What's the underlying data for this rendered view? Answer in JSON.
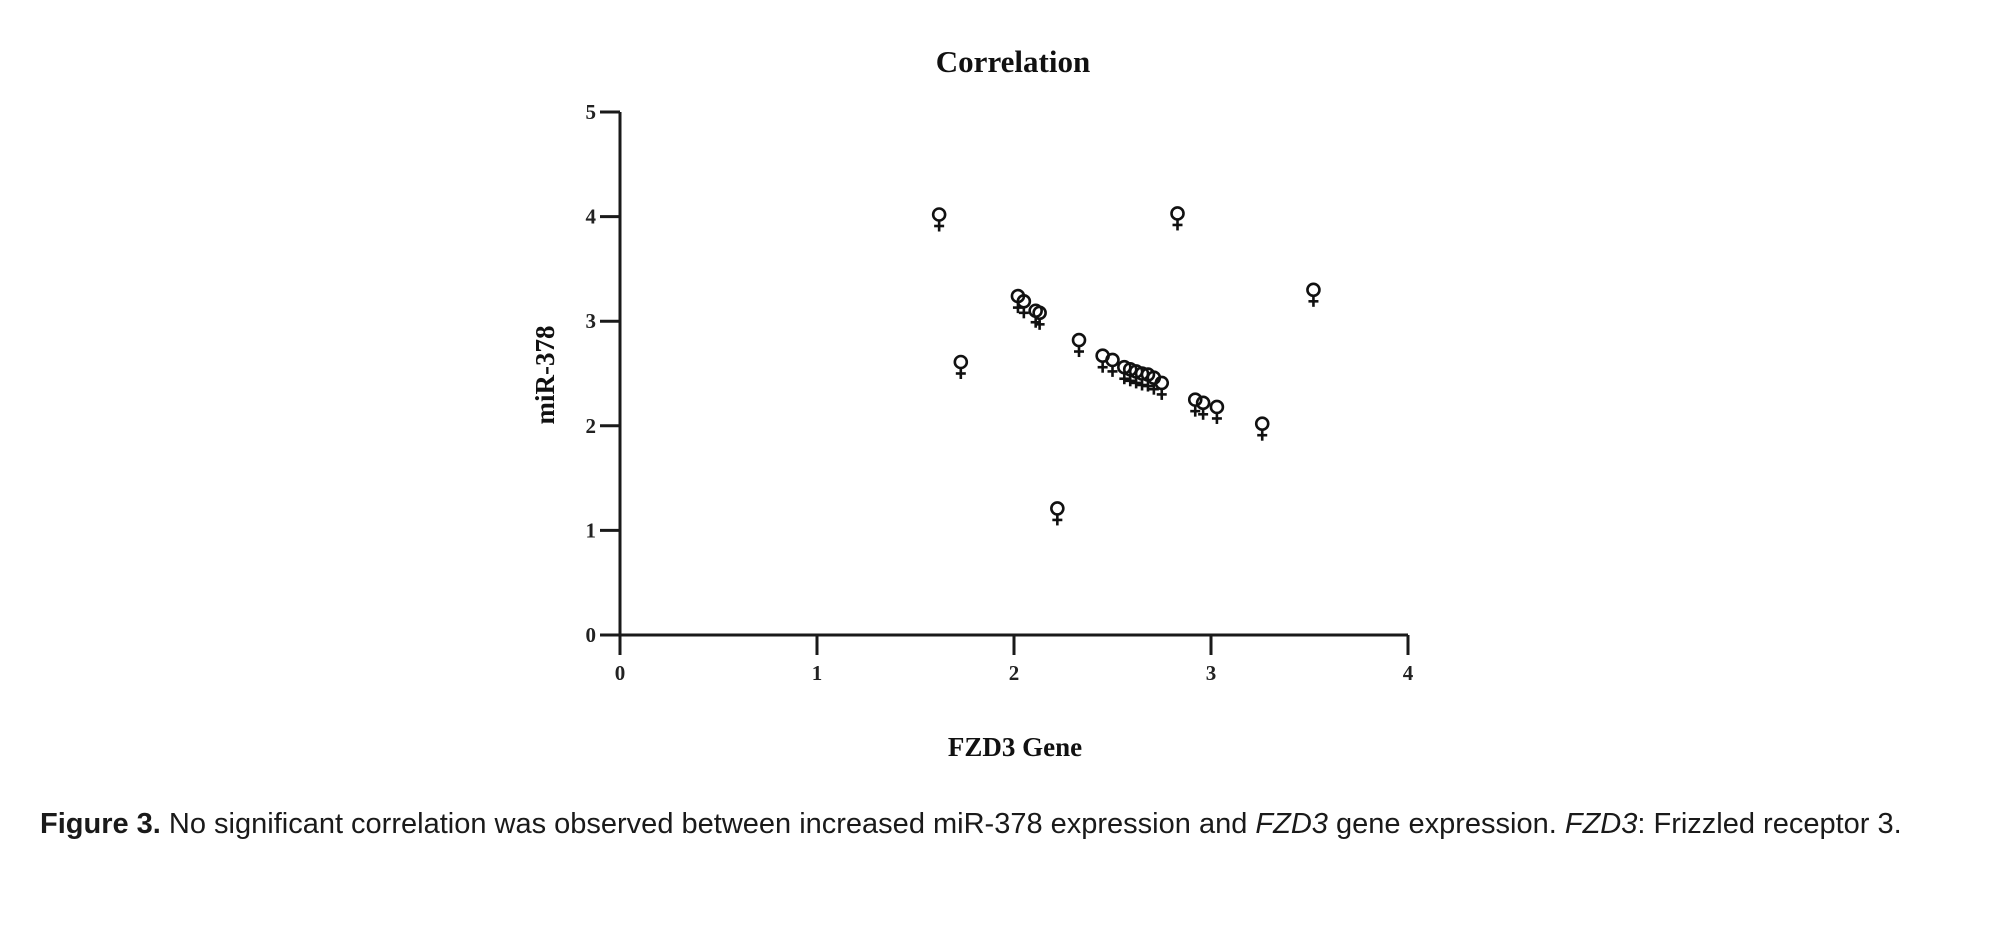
{
  "chart_data": {
    "type": "scatter",
    "title": "Correlation",
    "xlabel": "FZD3 Gene",
    "ylabel": "miR-378",
    "xlim": [
      0,
      4
    ],
    "ylim": [
      0,
      5
    ],
    "xticks": [
      "0",
      "1",
      "2",
      "3",
      "4"
    ],
    "yticks": [
      "0",
      "1",
      "2",
      "3",
      "4",
      "5"
    ],
    "grid": false,
    "legend": "none",
    "marker": "female-symbol",
    "points": [
      {
        "x": 1.62,
        "y": 4.02
      },
      {
        "x": 1.73,
        "y": 2.61
      },
      {
        "x": 2.02,
        "y": 3.24
      },
      {
        "x": 2.05,
        "y": 3.19
      },
      {
        "x": 2.11,
        "y": 3.1
      },
      {
        "x": 2.13,
        "y": 3.08
      },
      {
        "x": 2.22,
        "y": 1.21
      },
      {
        "x": 2.33,
        "y": 2.82
      },
      {
        "x": 2.45,
        "y": 2.67
      },
      {
        "x": 2.5,
        "y": 2.63
      },
      {
        "x": 2.56,
        "y": 2.56
      },
      {
        "x": 2.59,
        "y": 2.54
      },
      {
        "x": 2.62,
        "y": 2.52
      },
      {
        "x": 2.65,
        "y": 2.5
      },
      {
        "x": 2.68,
        "y": 2.49
      },
      {
        "x": 2.71,
        "y": 2.46
      },
      {
        "x": 2.75,
        "y": 2.41
      },
      {
        "x": 2.83,
        "y": 4.03
      },
      {
        "x": 2.92,
        "y": 2.25
      },
      {
        "x": 2.96,
        "y": 2.22
      },
      {
        "x": 3.03,
        "y": 2.18
      },
      {
        "x": 3.26,
        "y": 2.02
      },
      {
        "x": 3.52,
        "y": 3.3
      }
    ]
  },
  "caption": {
    "label": "Figure 3.",
    "part1": " No significant correlation was observed between increased miR-378 expression and ",
    "gene1": "FZD3",
    "part2": " gene expression. ",
    "gene2": "FZD3",
    "part3": ": Frizzled receptor 3."
  }
}
